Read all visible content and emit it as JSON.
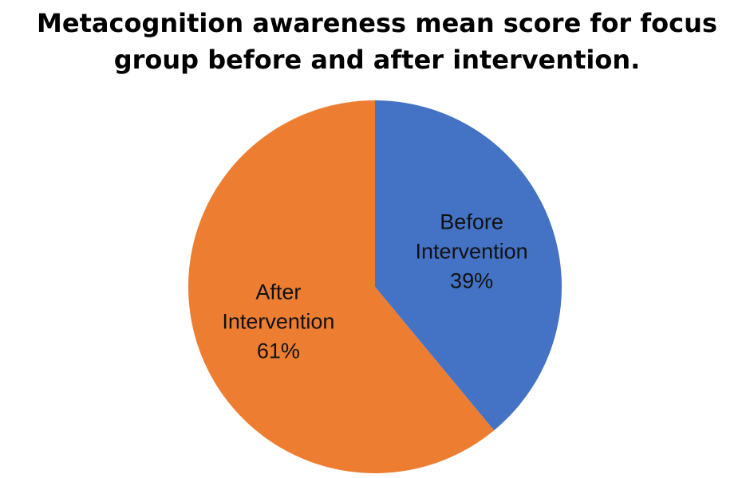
{
  "chart_data": {
    "type": "pie",
    "title": "Metacognition awareness mean score for focus group before and after intervention.",
    "categories": [
      "Before Intervention",
      "After Intervention"
    ],
    "values": [
      39,
      61
    ],
    "value_labels": [
      "39%",
      "61%"
    ],
    "colors": [
      "#4472c4",
      "#ed7d31"
    ]
  }
}
